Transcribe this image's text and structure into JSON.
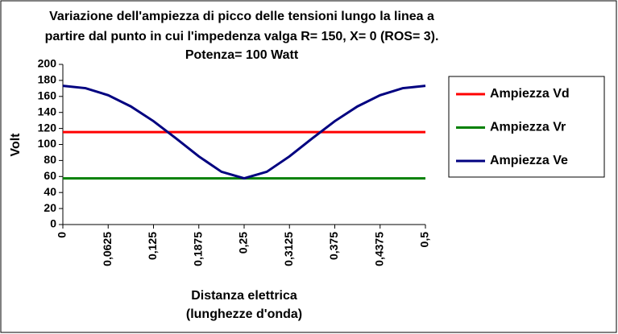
{
  "chart_data": {
    "type": "line",
    "title": [
      "Variazione dell'ampiezza di picco delle tensioni lungo la linea a",
      "partire dal punto in cui l'impedenza valga R= 150, X= 0 (ROS= 3).",
      "Potenza= 100 Watt"
    ],
    "x_label": [
      "Distanza elettrica",
      "(lunghezze d'onda)"
    ],
    "y_label": "Volt",
    "x": [
      0,
      0.03125,
      0.0625,
      0.09375,
      0.125,
      0.15625,
      0.1875,
      0.21875,
      0.25,
      0.28125,
      0.3125,
      0.34375,
      0.375,
      0.40625,
      0.4375,
      0.46875,
      0.5
    ],
    "series": [
      {
        "name": "Ampiezza Vd",
        "color": "#ff0000",
        "values": [
          115.5,
          115.5,
          115.5,
          115.5,
          115.5,
          115.5,
          115.5,
          115.5,
          115.5,
          115.5,
          115.5,
          115.5,
          115.5,
          115.5,
          115.5,
          115.5,
          115.5
        ]
      },
      {
        "name": "Ampiezza Vr",
        "color": "#008000",
        "values": [
          57.7,
          57.7,
          57.7,
          57.7,
          57.7,
          57.7,
          57.7,
          57.7,
          57.7,
          57.7,
          57.7,
          57.7,
          57.7,
          57.7,
          57.7,
          57.7,
          57.7
        ]
      },
      {
        "name": "Ampiezza Ve",
        "color": "#000080",
        "values": [
          173.2,
          170.3,
          161.5,
          147.5,
          129.1,
          107.5,
          85.1,
          65.9,
          57.7,
          65.9,
          85.1,
          107.5,
          129.1,
          147.5,
          161.5,
          170.3,
          173.2
        ]
      }
    ],
    "xlim": [
      0,
      0.5
    ],
    "xticks": [
      0,
      {
        "value": 0.0625,
        "label": "0,0625"
      },
      {
        "value": 0.125,
        "label": "0,125"
      },
      {
        "value": 0.1875,
        "label": "0,1875"
      },
      {
        "value": 0.25,
        "label": "0,25"
      },
      {
        "value": 0.3125,
        "label": "0,3125"
      },
      {
        "value": 0.375,
        "label": "0,375"
      },
      {
        "value": 0.4375,
        "label": "0,4375"
      },
      {
        "value": 0.5,
        "label": "0,5"
      }
    ],
    "ylim": [
      0,
      200
    ],
    "yticks": [
      0,
      20,
      40,
      60,
      80,
      100,
      120,
      140,
      160,
      180,
      200
    ],
    "legend": "right"
  }
}
